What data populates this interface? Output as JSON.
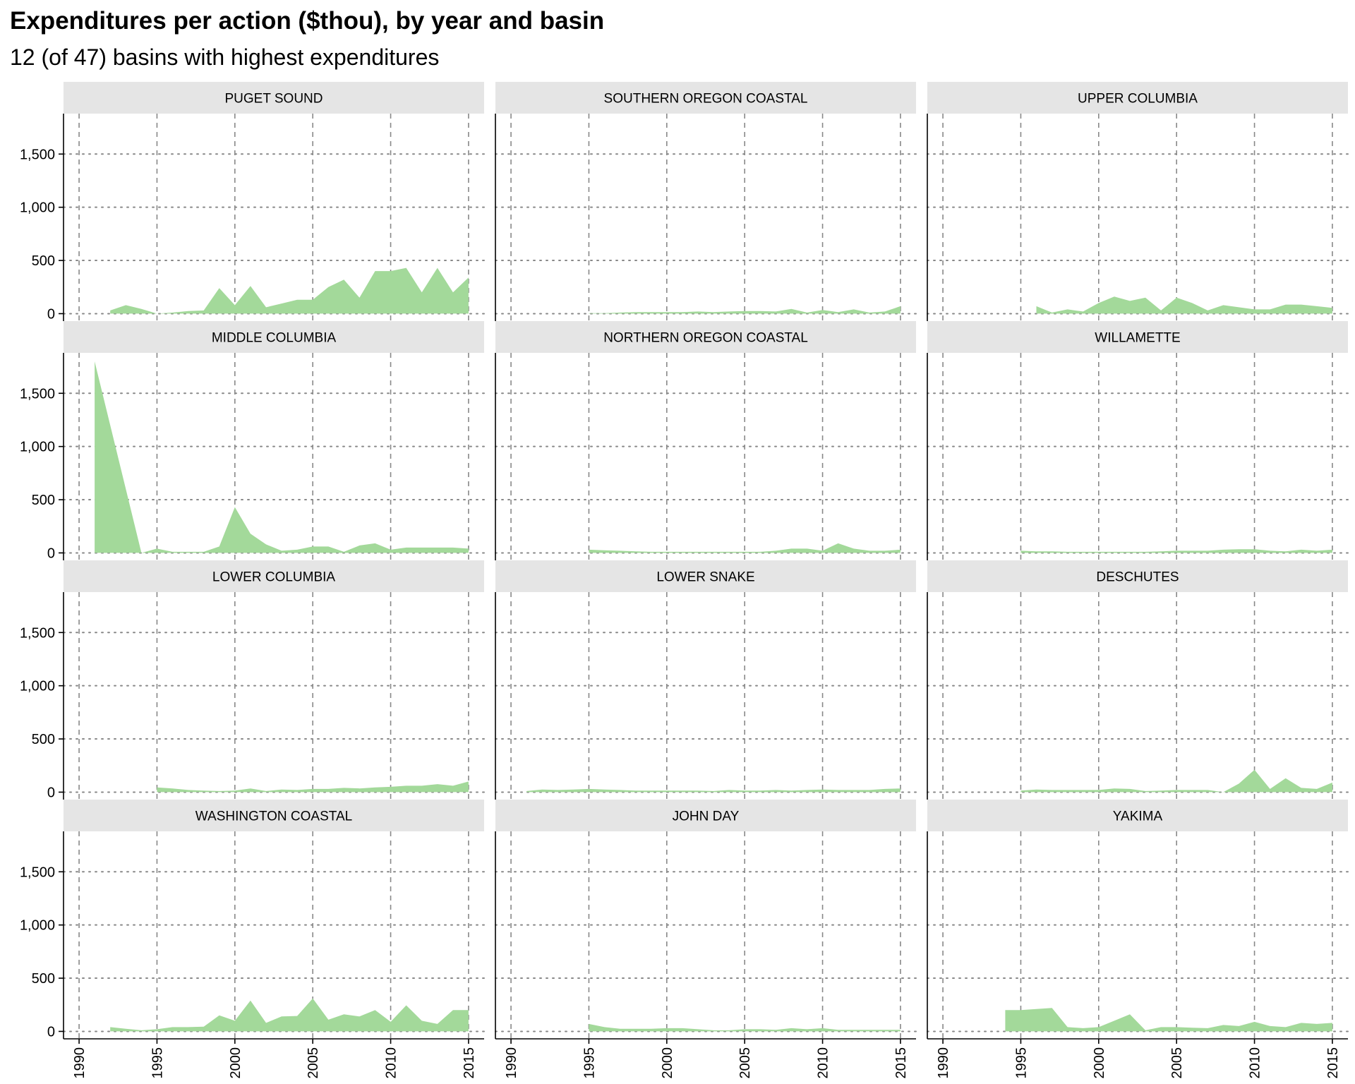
{
  "title": "Expenditures per action ($thou), by year and basin",
  "subtitle": "12 (of 47) basins with highest expenditures",
  "colors": {
    "area_fill": "#a3d99a",
    "strip_bg": "#e5e5e5",
    "axis_line": "#000000",
    "grid_line": "#888888",
    "text": "#000000"
  },
  "chart_data": {
    "type": "area",
    "layout": "facet-grid 4 rows x 3 columns",
    "grid": "dashed vertical at x ticks, dotted horizontal at y ticks",
    "xlim": [
      1989,
      2016
    ],
    "ylim": [
      -70,
      1880
    ],
    "x_ticks": [
      1990,
      1995,
      2000,
      2005,
      2010,
      2015
    ],
    "x_tick_labels": [
      "1990",
      "1995",
      "2000",
      "2005",
      "2010",
      "2015"
    ],
    "y_ticks": [
      0,
      500,
      1000,
      1500
    ],
    "y_tick_labels": [
      "0",
      "500",
      "1,000",
      "1,500"
    ],
    "panels": [
      {
        "name": "PUGET SOUND",
        "x": [
          1992,
          1993,
          1994,
          1995,
          1996,
          1997,
          1998,
          1999,
          2000,
          2001,
          2002,
          2003,
          2004,
          2005,
          2006,
          2007,
          2008,
          2009,
          2010,
          2011,
          2012,
          2013,
          2014,
          2015
        ],
        "values": [
          30,
          80,
          45,
          0,
          10,
          25,
          30,
          240,
          80,
          260,
          60,
          95,
          130,
          130,
          250,
          320,
          150,
          400,
          400,
          430,
          200,
          430,
          200,
          340
        ]
      },
      {
        "name": "SOUTHERN OREGON COASTAL",
        "x": [
          1995,
          1996,
          1997,
          1998,
          1999,
          2000,
          2001,
          2002,
          2003,
          2004,
          2005,
          2006,
          2007,
          2008,
          2009,
          2010,
          2011,
          2012,
          2013,
          2014,
          2015
        ],
        "values": [
          5,
          5,
          10,
          15,
          15,
          15,
          15,
          20,
          15,
          20,
          25,
          25,
          20,
          45,
          10,
          35,
          15,
          40,
          10,
          20,
          70
        ]
      },
      {
        "name": "UPPER COLUMBIA",
        "x": [
          1996,
          1997,
          1998,
          1999,
          2000,
          2001,
          2002,
          2003,
          2004,
          2005,
          2006,
          2007,
          2008,
          2009,
          2010,
          2011,
          2012,
          2013,
          2014,
          2015
        ],
        "values": [
          70,
          10,
          40,
          20,
          100,
          160,
          120,
          150,
          30,
          150,
          100,
          30,
          80,
          60,
          40,
          40,
          85,
          85,
          70,
          55
        ]
      },
      {
        "name": "MIDDLE COLUMBIA",
        "x": [
          1991,
          1994,
          1995,
          1996,
          1997,
          1998,
          1999,
          2000,
          2001,
          2002,
          2003,
          2004,
          2005,
          2006,
          2007,
          2008,
          2009,
          2010,
          2011,
          2012,
          2013,
          2014,
          2015
        ],
        "values": [
          1800,
          0,
          40,
          10,
          10,
          10,
          60,
          430,
          180,
          80,
          20,
          30,
          60,
          60,
          10,
          70,
          90,
          30,
          50,
          50,
          50,
          50,
          40
        ]
      },
      {
        "name": "NORTHERN OREGON COASTAL",
        "x": [
          1995,
          1996,
          1997,
          1998,
          1999,
          2000,
          2001,
          2002,
          2003,
          2004,
          2005,
          2006,
          2007,
          2008,
          2009,
          2010,
          2011,
          2012,
          2013,
          2014,
          2015
        ],
        "values": [
          30,
          25,
          20,
          15,
          10,
          10,
          10,
          10,
          10,
          10,
          10,
          10,
          20,
          40,
          40,
          20,
          90,
          40,
          20,
          20,
          30
        ]
      },
      {
        "name": "WILLAMETTE",
        "x": [
          1995,
          1996,
          1997,
          1998,
          1999,
          2000,
          2001,
          2002,
          2003,
          2004,
          2005,
          2006,
          2007,
          2008,
          2009,
          2010,
          2011,
          2012,
          2013,
          2014,
          2015
        ],
        "values": [
          20,
          15,
          15,
          10,
          10,
          10,
          10,
          10,
          10,
          15,
          20,
          20,
          20,
          30,
          35,
          35,
          20,
          15,
          30,
          20,
          30
        ]
      },
      {
        "name": "LOWER COLUMBIA",
        "x": [
          1995,
          1996,
          1997,
          1998,
          1999,
          2000,
          2001,
          2002,
          2003,
          2004,
          2005,
          2006,
          2007,
          2008,
          2009,
          2010,
          2011,
          2012,
          2013,
          2014,
          2015
        ],
        "values": [
          45,
          35,
          20,
          15,
          10,
          15,
          35,
          10,
          25,
          20,
          30,
          30,
          40,
          35,
          45,
          50,
          60,
          60,
          75,
          60,
          100
        ]
      },
      {
        "name": "LOWER SNAKE",
        "x": [
          1991,
          1992,
          1993,
          1994,
          1995,
          1996,
          1997,
          1998,
          1999,
          2000,
          2001,
          2002,
          2003,
          2004,
          2005,
          2006,
          2007,
          2008,
          2009,
          2010,
          2011,
          2012,
          2013,
          2014,
          2015
        ],
        "values": [
          10,
          25,
          20,
          25,
          30,
          25,
          20,
          15,
          15,
          15,
          15,
          15,
          10,
          20,
          15,
          15,
          20,
          15,
          20,
          25,
          20,
          20,
          20,
          30,
          35
        ]
      },
      {
        "name": "DESCHUTES",
        "x": [
          1995,
          1996,
          1997,
          1998,
          1999,
          2000,
          2001,
          2002,
          2003,
          2004,
          2005,
          2006,
          2007,
          2008,
          2009,
          2010,
          2011,
          2012,
          2013,
          2014,
          2015
        ],
        "values": [
          15,
          25,
          20,
          20,
          20,
          20,
          35,
          30,
          10,
          15,
          20,
          20,
          20,
          0,
          80,
          210,
          30,
          130,
          40,
          30,
          90
        ]
      },
      {
        "name": "WASHINGTON COASTAL",
        "x": [
          1992,
          1993,
          1994,
          1995,
          1996,
          1997,
          1998,
          1999,
          2000,
          2001,
          2002,
          2003,
          2004,
          2005,
          2006,
          2007,
          2008,
          2009,
          2010,
          2011,
          2012,
          2013,
          2014,
          2015
        ],
        "values": [
          40,
          25,
          10,
          20,
          40,
          40,
          45,
          150,
          100,
          290,
          80,
          140,
          145,
          310,
          110,
          160,
          140,
          200,
          90,
          245,
          100,
          70,
          200,
          200
        ]
      },
      {
        "name": "JOHN DAY",
        "x": [
          1995,
          1996,
          1997,
          1998,
          1999,
          2000,
          2001,
          2002,
          2003,
          2004,
          2005,
          2006,
          2007,
          2008,
          2009,
          2010,
          2011,
          2012,
          2013,
          2014,
          2015
        ],
        "values": [
          70,
          40,
          25,
          25,
          25,
          30,
          30,
          20,
          10,
          10,
          20,
          20,
          15,
          30,
          20,
          30,
          15,
          15,
          15,
          15,
          15
        ]
      },
      {
        "name": "YAKIMA",
        "x": [
          1994,
          1995,
          1996,
          1997,
          1998,
          1999,
          2000,
          2001,
          2002,
          2003,
          2004,
          2005,
          2006,
          2007,
          2008,
          2009,
          2010,
          2011,
          2012,
          2013,
          2014,
          2015
        ],
        "values": [
          200,
          200,
          210,
          220,
          40,
          30,
          40,
          100,
          160,
          10,
          40,
          40,
          35,
          30,
          60,
          50,
          90,
          50,
          40,
          80,
          70,
          80
        ]
      }
    ]
  }
}
